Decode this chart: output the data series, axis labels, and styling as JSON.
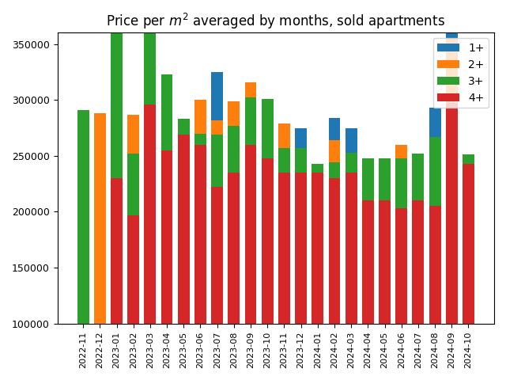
{
  "months": [
    "2022-11",
    "2022-12",
    "2023-01",
    "2023-02",
    "2023-03",
    "2023-04",
    "2023-05",
    "2023-06",
    "2023-07",
    "2023-08",
    "2023-09",
    "2023-10",
    "2023-11",
    "2023-12",
    "2024-01",
    "2024-02",
    "2024-03",
    "2024-04",
    "2024-05",
    "2024-06",
    "2024-07",
    "2024-08",
    "2024-09",
    "2024-10"
  ],
  "val_4p": [
    0,
    0,
    130000,
    97000,
    196000,
    155000,
    169000,
    160000,
    122000,
    135000,
    160000,
    148000,
    135000,
    135000,
    135000,
    130000,
    135000,
    110000,
    110000,
    103000,
    110000,
    105000,
    197000,
    143000
  ],
  "val_3p": [
    191000,
    0,
    130000,
    55000,
    90000,
    68000,
    14000,
    10000,
    47000,
    42000,
    42000,
    53000,
    22000,
    22000,
    8000,
    14000,
    18000,
    38000,
    38000,
    45000,
    42000,
    62000,
    0,
    8000
  ],
  "val_2p": [
    0,
    188000,
    0,
    35000,
    0,
    0,
    0,
    30000,
    13000,
    22000,
    14000,
    0,
    22000,
    0,
    0,
    20000,
    0,
    0,
    0,
    12000,
    0,
    0,
    58000,
    0
  ],
  "val_1p": [
    0,
    0,
    0,
    0,
    42000,
    0,
    0,
    0,
    43000,
    0,
    0,
    0,
    0,
    18000,
    0,
    20000,
    22000,
    0,
    0,
    0,
    0,
    26000,
    5000,
    0
  ],
  "colors": {
    "1+": "#1f77b4",
    "2+": "#ff7f0e",
    "3+": "#2ca02c",
    "4+": "#d62728"
  },
  "title": "Price per $m^2$ averaged by months, sold apartments",
  "ylim": [
    100000,
    360000
  ],
  "yticks": [
    100000,
    150000,
    200000,
    250000,
    300000,
    350000
  ]
}
